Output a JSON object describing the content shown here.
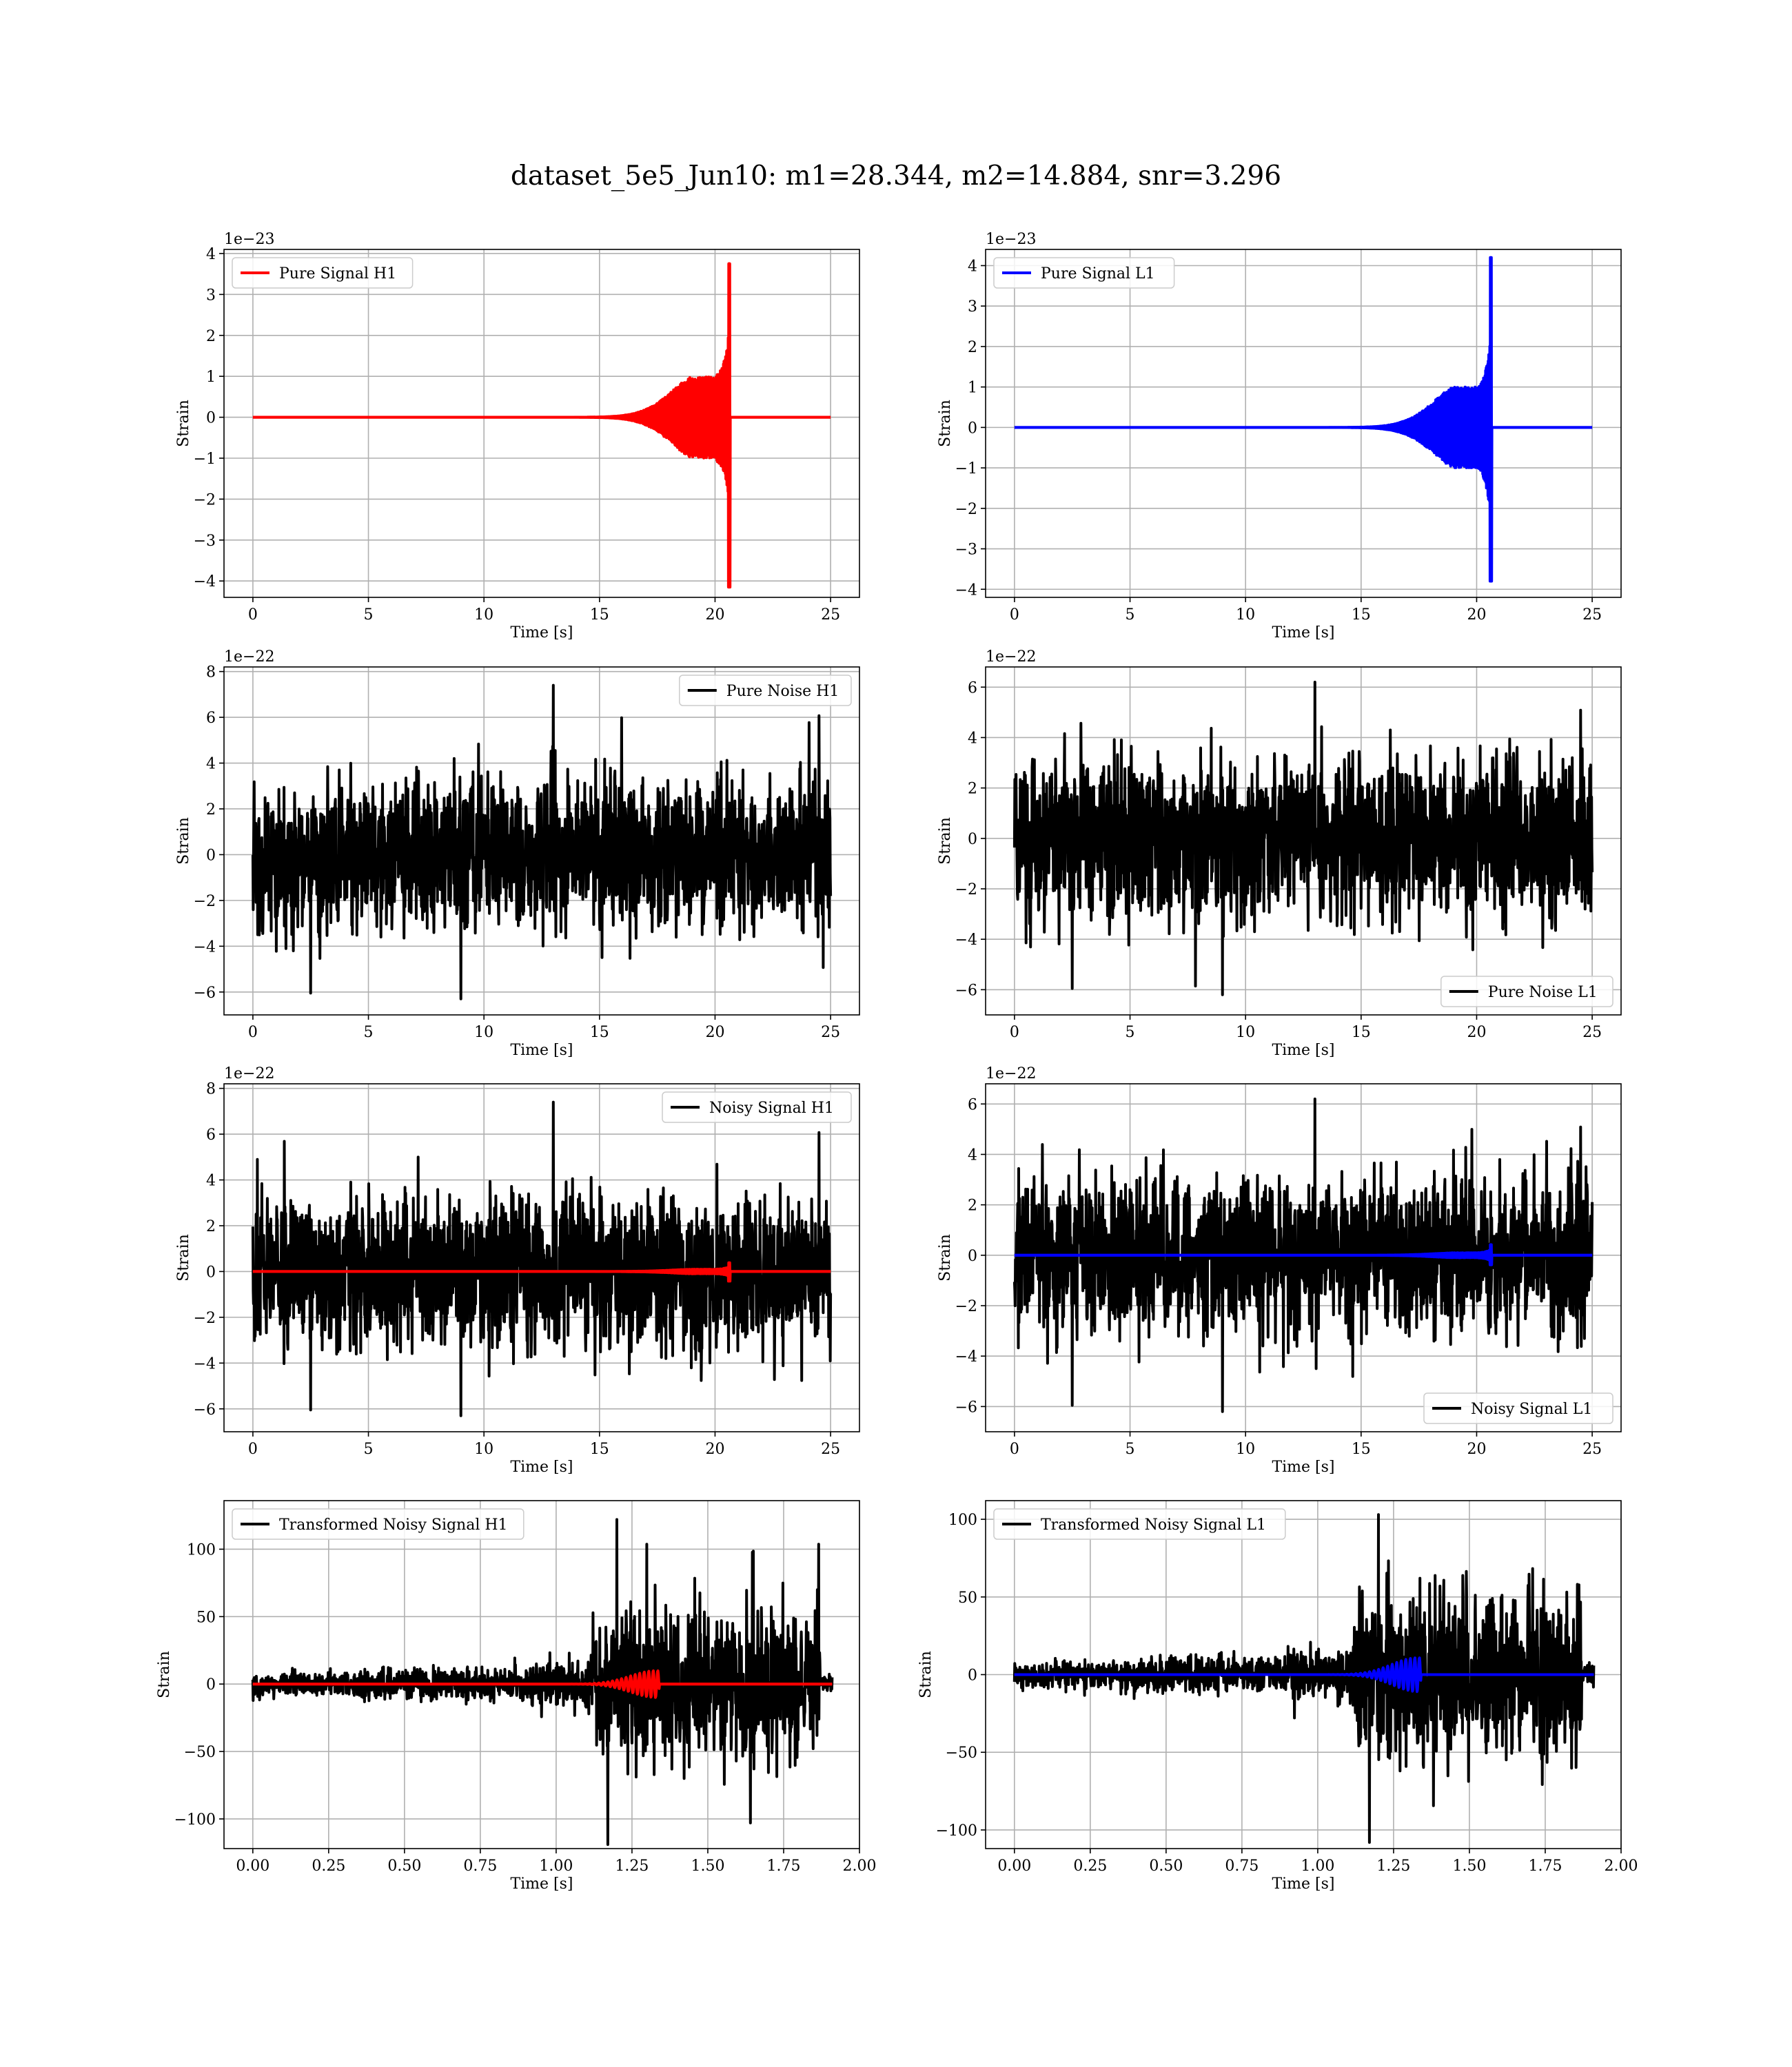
{
  "figure": {
    "title": "dataset_5e5_Jun10: m1=28.344, m2=14.884, snr=3.296"
  },
  "colors": {
    "h1": "#ff0000",
    "l1": "#0000ff",
    "noise": "#000000",
    "grid": "#b0b0b0"
  },
  "chart_data": [
    {
      "id": "pure-signal-h1",
      "type": "line",
      "xlabel": "Time [s]",
      "ylabel": "Strain",
      "offset_text": "1e−23",
      "xlim": [
        -1.25,
        26.25
      ],
      "ylim": [
        -4.4,
        4.1
      ],
      "xticks": [
        0,
        5,
        10,
        15,
        20,
        25
      ],
      "xtick_labels": [
        "0",
        "5",
        "10",
        "15",
        "20",
        "25"
      ],
      "yticks": [
        -4,
        -3,
        -2,
        -1,
        0,
        1,
        2,
        3,
        4
      ],
      "ytick_labels": [
        "−4",
        "−3",
        "−2",
        "−1",
        "0",
        "1",
        "2",
        "3",
        "4"
      ],
      "legend": {
        "placement": "upper-left"
      },
      "grid": true,
      "series": [
        {
          "name": "Pure Signal H1",
          "color": "#ff0000",
          "kind": "chirp",
          "x_range": [
            0,
            25
          ],
          "merger_time": 20.65,
          "peak": 3.75,
          "trough": -4.15,
          "plateau": 1.0
        }
      ]
    },
    {
      "id": "pure-signal-l1",
      "type": "line",
      "xlabel": "Time [s]",
      "ylabel": "Strain",
      "offset_text": "1e−23",
      "xlim": [
        -1.25,
        26.25
      ],
      "ylim": [
        -4.2,
        4.4
      ],
      "xticks": [
        0,
        5,
        10,
        15,
        20,
        25
      ],
      "xtick_labels": [
        "0",
        "5",
        "10",
        "15",
        "20",
        "25"
      ],
      "yticks": [
        -4,
        -3,
        -2,
        -1,
        0,
        1,
        2,
        3,
        4
      ],
      "ytick_labels": [
        "−4",
        "−3",
        "−2",
        "−1",
        "0",
        "1",
        "2",
        "3",
        "4"
      ],
      "legend": {
        "placement": "upper-left"
      },
      "grid": true,
      "series": [
        {
          "name": "Pure Signal L1",
          "color": "#0000ff",
          "kind": "chirp",
          "x_range": [
            0,
            25
          ],
          "merger_time": 20.65,
          "peak": 4.2,
          "trough": -3.8,
          "plateau": 1.0
        }
      ]
    },
    {
      "id": "pure-noise-h1",
      "type": "line",
      "xlabel": "Time [s]",
      "ylabel": "Strain",
      "offset_text": "1e−22",
      "xlim": [
        -1.25,
        26.25
      ],
      "ylim": [
        -7.0,
        8.2
      ],
      "xticks": [
        0,
        5,
        10,
        15,
        20,
        25
      ],
      "xtick_labels": [
        "0",
        "5",
        "10",
        "15",
        "20",
        "25"
      ],
      "yticks": [
        -6,
        -4,
        -2,
        0,
        2,
        4,
        6,
        8
      ],
      "ytick_labels": [
        "−6",
        "−4",
        "−2",
        "0",
        "2",
        "4",
        "6",
        "8"
      ],
      "legend": {
        "placement": "upper-right"
      },
      "grid": true,
      "series": [
        {
          "name": "Pure Noise H1",
          "color": "#000000",
          "kind": "noise",
          "x_range": [
            0,
            25
          ],
          "band": 3.7,
          "max": 7.4,
          "min": -6.3
        }
      ]
    },
    {
      "id": "pure-noise-l1",
      "type": "line",
      "xlabel": "Time [s]",
      "ylabel": "Strain",
      "offset_text": "1e−22",
      "xlim": [
        -1.25,
        26.25
      ],
      "ylim": [
        -7.0,
        6.8
      ],
      "xticks": [
        0,
        5,
        10,
        15,
        20,
        25
      ],
      "xtick_labels": [
        "0",
        "5",
        "10",
        "15",
        "20",
        "25"
      ],
      "yticks": [
        -6,
        -4,
        -2,
        0,
        2,
        4,
        6
      ],
      "ytick_labels": [
        "−6",
        "−4",
        "−2",
        "0",
        "2",
        "4",
        "6"
      ],
      "legend": {
        "placement": "lower-right"
      },
      "grid": true,
      "series": [
        {
          "name": "Pure Noise L1",
          "color": "#000000",
          "kind": "noise",
          "x_range": [
            0,
            25
          ],
          "band": 3.6,
          "max": 6.2,
          "min": -6.2
        }
      ]
    },
    {
      "id": "noisy-signal-h1",
      "type": "line",
      "xlabel": "Time [s]",
      "ylabel": "Strain",
      "offset_text": "1e−22",
      "xlim": [
        -1.25,
        26.25
      ],
      "ylim": [
        -7.0,
        8.2
      ],
      "xticks": [
        0,
        5,
        10,
        15,
        20,
        25
      ],
      "xtick_labels": [
        "0",
        "5",
        "10",
        "15",
        "20",
        "25"
      ],
      "yticks": [
        -6,
        -4,
        -2,
        0,
        2,
        4,
        6,
        8
      ],
      "ytick_labels": [
        "−6",
        "−4",
        "−2",
        "0",
        "2",
        "4",
        "6",
        "8"
      ],
      "legend": {
        "placement": "upper-right"
      },
      "grid": true,
      "series": [
        {
          "name": "Noisy Signal H1",
          "color": "#000000",
          "kind": "noise",
          "x_range": [
            0,
            25
          ],
          "band": 3.7,
          "max": 7.4,
          "min": -6.3
        },
        {
          "color": "#ff0000",
          "kind": "chirp",
          "x_range": [
            0,
            25
          ],
          "merger_time": 20.65,
          "peak": 0.38,
          "trough": -0.42,
          "plateau": 0.1
        }
      ]
    },
    {
      "id": "noisy-signal-l1",
      "type": "line",
      "xlabel": "Time [s]",
      "ylabel": "Strain",
      "offset_text": "1e−22",
      "xlim": [
        -1.25,
        26.25
      ],
      "ylim": [
        -7.0,
        6.8
      ],
      "xticks": [
        0,
        5,
        10,
        15,
        20,
        25
      ],
      "xtick_labels": [
        "0",
        "5",
        "10",
        "15",
        "20",
        "25"
      ],
      "yticks": [
        -6,
        -4,
        -2,
        0,
        2,
        4,
        6
      ],
      "ytick_labels": [
        "−6",
        "−4",
        "−2",
        "0",
        "2",
        "4",
        "6"
      ],
      "legend": {
        "placement": "lower-right"
      },
      "grid": true,
      "series": [
        {
          "name": "Noisy Signal L1",
          "color": "#000000",
          "kind": "noise",
          "x_range": [
            0,
            25
          ],
          "band": 3.6,
          "max": 6.2,
          "min": -6.2
        },
        {
          "color": "#0000ff",
          "kind": "chirp",
          "x_range": [
            0,
            25
          ],
          "merger_time": 20.65,
          "peak": 0.42,
          "trough": -0.38,
          "plateau": 0.1
        }
      ]
    },
    {
      "id": "transformed-noisy-signal-h1",
      "type": "line",
      "xlabel": "Time [s]",
      "ylabel": "Strain",
      "offset_text": "",
      "xlim": [
        -0.095,
        2.0
      ],
      "ylim": [
        -122,
        136
      ],
      "xticks": [
        0,
        0.25,
        0.5,
        0.75,
        1.0,
        1.25,
        1.5,
        1.75,
        2.0
      ],
      "xtick_labels": [
        "0.00",
        "0.25",
        "0.50",
        "0.75",
        "1.00",
        "1.25",
        "1.50",
        "1.75",
        "2.00"
      ],
      "yticks": [
        -100,
        -50,
        0,
        50,
        100
      ],
      "ytick_labels": [
        "−100",
        "−50",
        "0",
        "50",
        "100"
      ],
      "legend": {
        "placement": "upper-left"
      },
      "grid": true,
      "series": [
        {
          "name": "Transformed Noisy Signal H1",
          "color": "#000000",
          "kind": "transformed",
          "x_range": [
            0,
            1.91
          ],
          "jump_at": 1.12,
          "end_at": 1.87,
          "low_band": 8,
          "high_band": 55,
          "max": 122,
          "min": -119
        },
        {
          "color": "#ff0000",
          "kind": "wavelet",
          "x_range": [
            0,
            1.91
          ],
          "center": 1.33,
          "amp": 10
        }
      ]
    },
    {
      "id": "transformed-noisy-signal-l1",
      "type": "line",
      "xlabel": "Time [s]",
      "ylabel": "Strain",
      "offset_text": "",
      "xlim": [
        -0.095,
        2.0
      ],
      "ylim": [
        -112,
        112
      ],
      "xticks": [
        0,
        0.25,
        0.5,
        0.75,
        1.0,
        1.25,
        1.5,
        1.75,
        2.0
      ],
      "xtick_labels": [
        "0.00",
        "0.25",
        "0.50",
        "0.75",
        "1.00",
        "1.25",
        "1.50",
        "1.75",
        "2.00"
      ],
      "yticks": [
        -100,
        -50,
        0,
        50,
        100
      ],
      "ytick_labels": [
        "−100",
        "−50",
        "0",
        "50",
        "100"
      ],
      "legend": {
        "placement": "upper-left"
      },
      "grid": true,
      "series": [
        {
          "name": "Transformed Noisy Signal L1",
          "color": "#000000",
          "kind": "transformed",
          "x_range": [
            0,
            1.91
          ],
          "jump_at": 1.12,
          "end_at": 1.87,
          "low_band": 8,
          "high_band": 50,
          "max": 103,
          "min": -108
        },
        {
          "color": "#0000ff",
          "kind": "wavelet",
          "x_range": [
            0,
            1.91
          ],
          "center": 1.33,
          "amp": 11
        }
      ]
    }
  ]
}
